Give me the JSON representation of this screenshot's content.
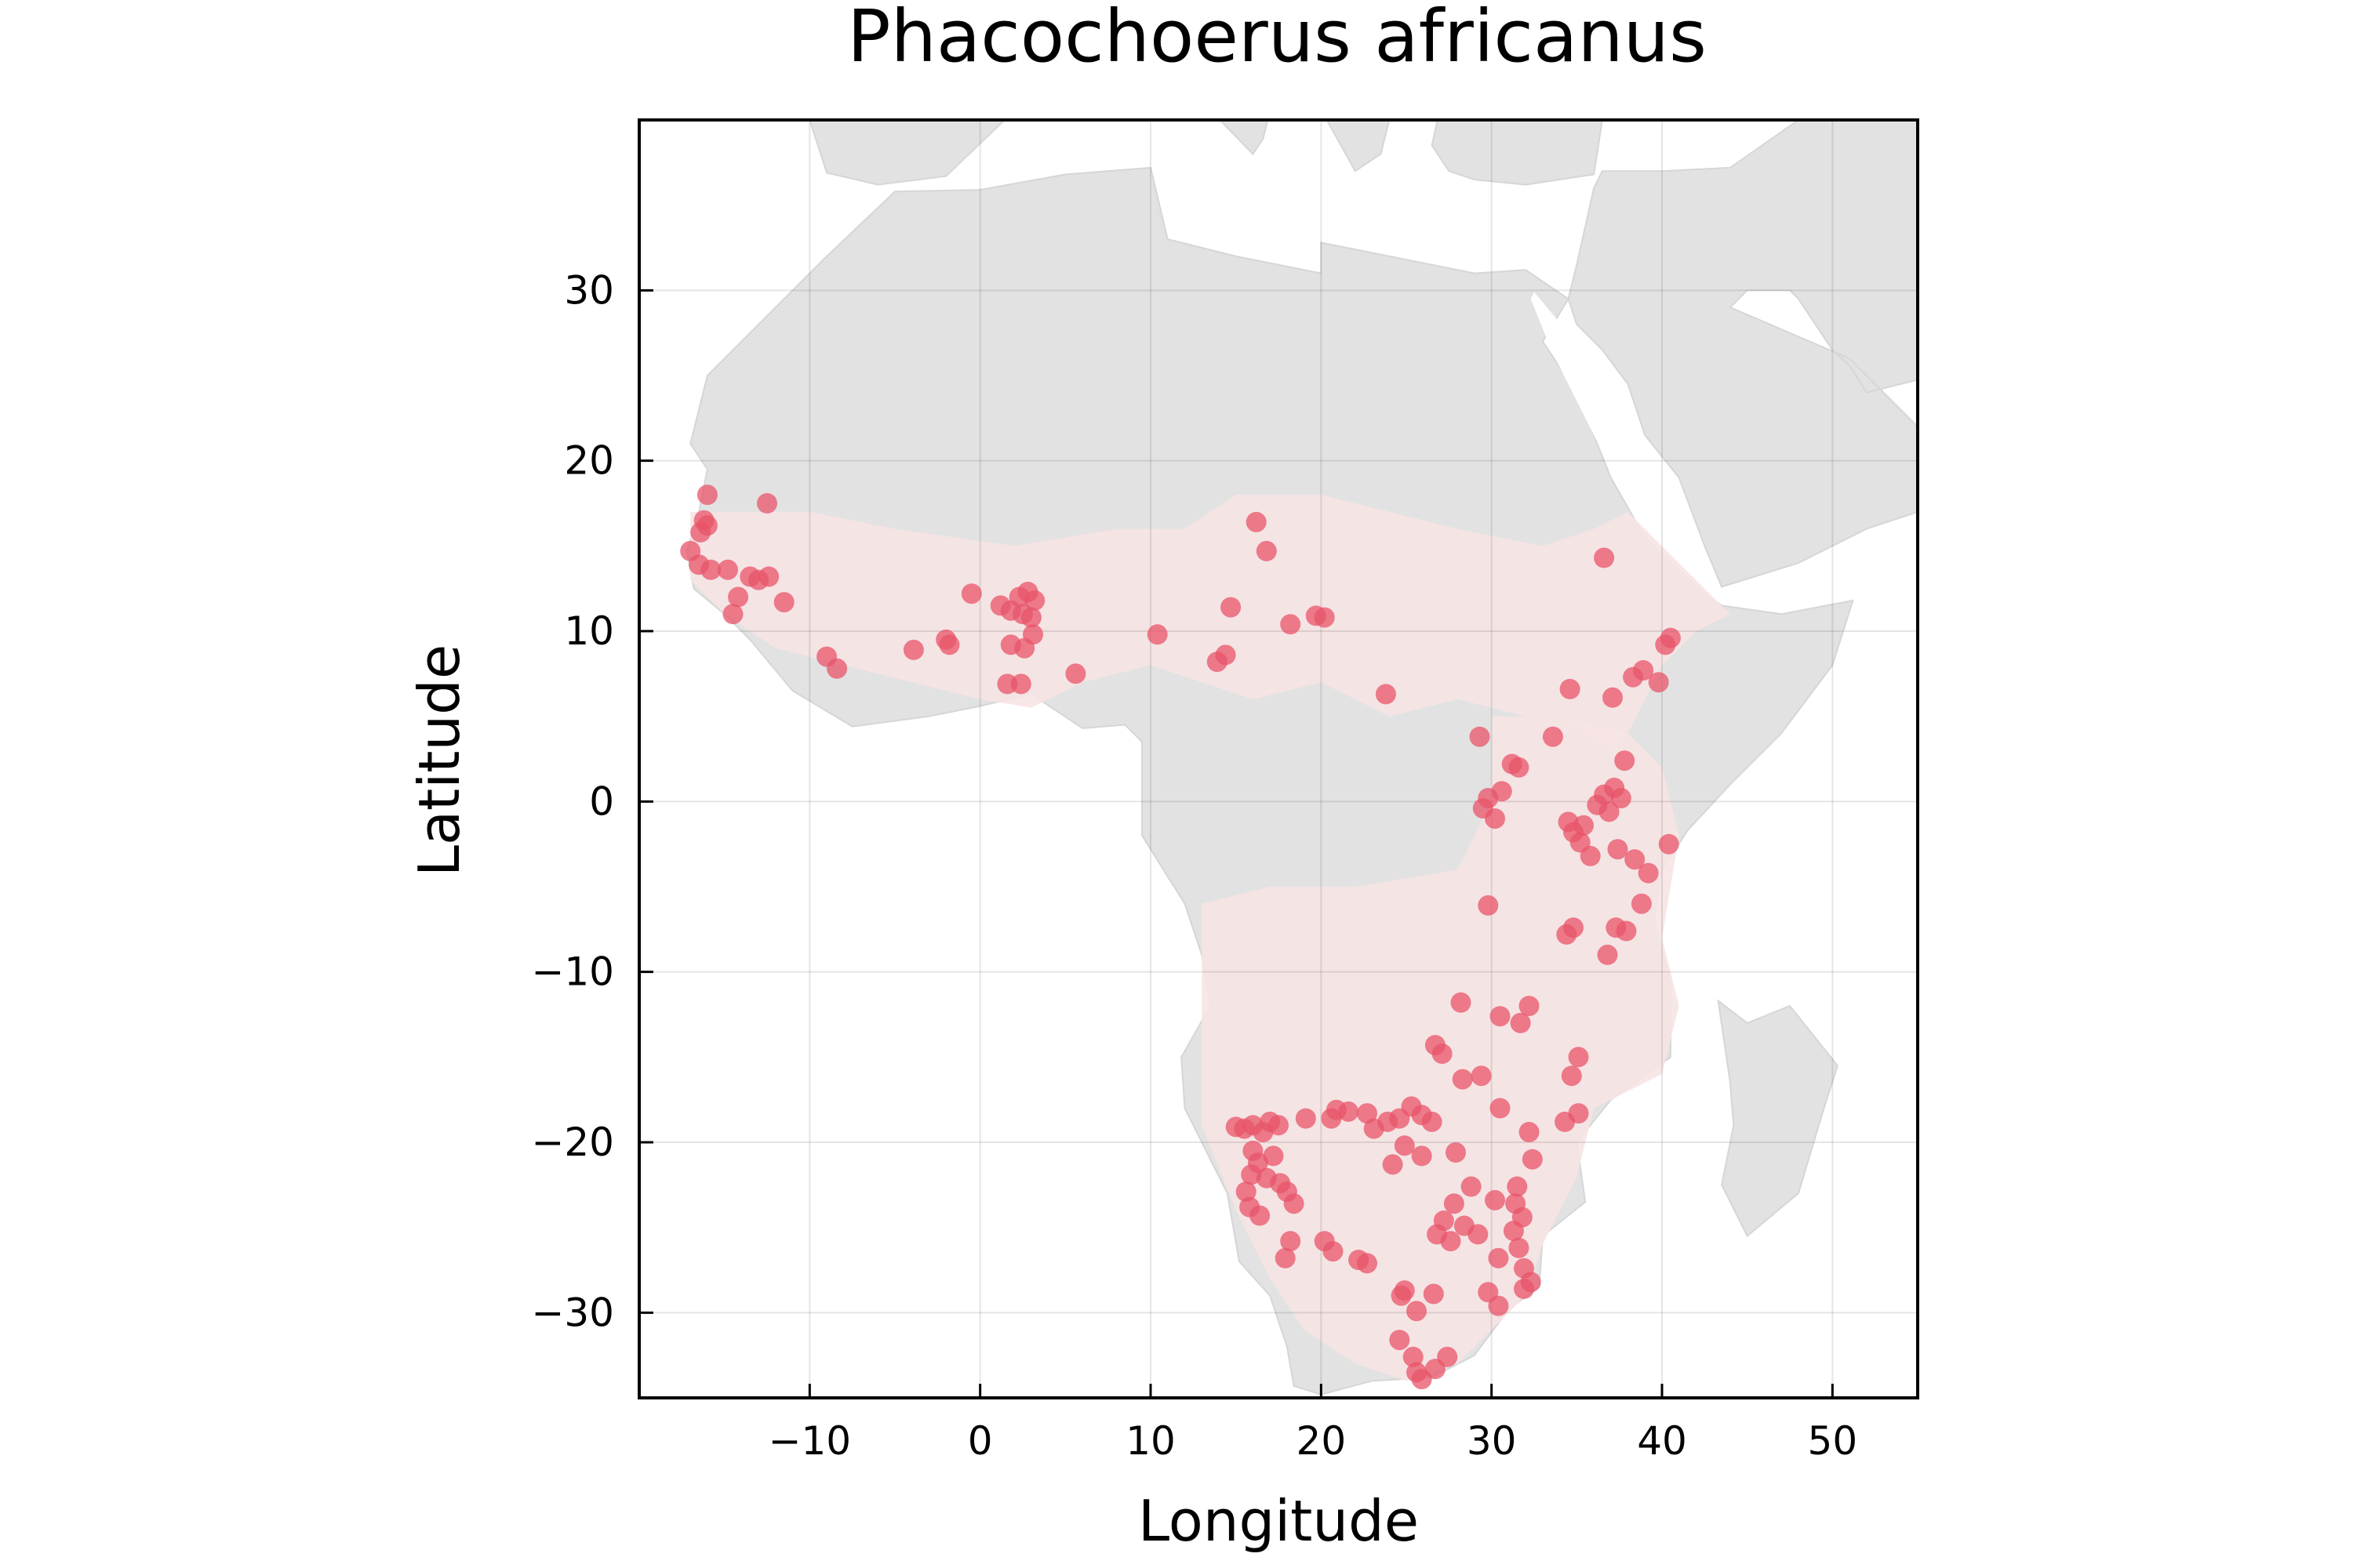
{
  "chart_data": {
    "type": "scatter",
    "title": "Phacochoerus africanus",
    "xlabel": "Longitude",
    "ylabel": "Latitude",
    "xlim": [
      -20,
      55
    ],
    "ylim": [
      -35,
      40
    ],
    "xticks": [
      -10,
      0,
      10,
      20,
      30,
      40,
      50
    ],
    "yticks": [
      -30,
      -20,
      -10,
      0,
      10,
      20,
      30
    ],
    "xtick_labels": [
      "−10",
      "0",
      "10",
      "20",
      "30",
      "40",
      "50"
    ],
    "ytick_labels": [
      "−30",
      "−20",
      "−10",
      "0",
      "10",
      "20",
      "30"
    ],
    "grid": true,
    "legend": "none",
    "colors": {
      "land": "#e2e2e2",
      "range": "#f7e4e4",
      "points": "#e8546a"
    },
    "points": [
      {
        "lon": -16.2,
        "lat": 16.5
      },
      {
        "lon": -16.0,
        "lat": 16.2
      },
      {
        "lon": -16.4,
        "lat": 15.8
      },
      {
        "lon": -17.0,
        "lat": 14.7
      },
      {
        "lon": -16.5,
        "lat": 13.9
      },
      {
        "lon": -15.8,
        "lat": 13.6
      },
      {
        "lon": -14.8,
        "lat": 13.6
      },
      {
        "lon": -13.5,
        "lat": 13.2
      },
      {
        "lon": -13.0,
        "lat": 13.0
      },
      {
        "lon": -12.4,
        "lat": 13.2
      },
      {
        "lon": -12.5,
        "lat": 17.5
      },
      {
        "lon": -16.0,
        "lat": 18.0
      },
      {
        "lon": -14.5,
        "lat": 11.0
      },
      {
        "lon": -14.2,
        "lat": 12.0
      },
      {
        "lon": -11.5,
        "lat": 11.7
      },
      {
        "lon": -9.0,
        "lat": 8.5
      },
      {
        "lon": -8.4,
        "lat": 7.8
      },
      {
        "lon": -3.9,
        "lat": 8.9
      },
      {
        "lon": -2.0,
        "lat": 9.5
      },
      {
        "lon": -1.8,
        "lat": 9.2
      },
      {
        "lon": -0.5,
        "lat": 12.2
      },
      {
        "lon": 1.2,
        "lat": 11.5
      },
      {
        "lon": 1.8,
        "lat": 11.2
      },
      {
        "lon": 2.3,
        "lat": 12.0
      },
      {
        "lon": 2.8,
        "lat": 12.3
      },
      {
        "lon": 3.2,
        "lat": 11.8
      },
      {
        "lon": 2.5,
        "lat": 11.0
      },
      {
        "lon": 3.0,
        "lat": 10.8
      },
      {
        "lon": 3.1,
        "lat": 9.8
      },
      {
        "lon": 2.6,
        "lat": 9.0
      },
      {
        "lon": 1.8,
        "lat": 9.2
      },
      {
        "lon": 1.6,
        "lat": 6.9
      },
      {
        "lon": 2.4,
        "lat": 6.9
      },
      {
        "lon": 5.6,
        "lat": 7.5
      },
      {
        "lon": 10.4,
        "lat": 9.8
      },
      {
        "lon": 13.9,
        "lat": 8.2
      },
      {
        "lon": 14.4,
        "lat": 8.6
      },
      {
        "lon": 14.7,
        "lat": 11.4
      },
      {
        "lon": 16.2,
        "lat": 16.4
      },
      {
        "lon": 16.8,
        "lat": 14.7
      },
      {
        "lon": 18.2,
        "lat": 10.4
      },
      {
        "lon": 19.7,
        "lat": 10.9
      },
      {
        "lon": 20.2,
        "lat": 10.8
      },
      {
        "lon": 23.8,
        "lat": 6.3
      },
      {
        "lon": 29.3,
        "lat": 3.8
      },
      {
        "lon": 29.8,
        "lat": 0.2
      },
      {
        "lon": 29.5,
        "lat": -0.4
      },
      {
        "lon": 30.2,
        "lat": -1.0
      },
      {
        "lon": 30.6,
        "lat": 0.6
      },
      {
        "lon": 31.2,
        "lat": 2.2
      },
      {
        "lon": 31.6,
        "lat": 2.0
      },
      {
        "lon": 33.6,
        "lat": 3.8
      },
      {
        "lon": 34.5,
        "lat": -1.2
      },
      {
        "lon": 34.8,
        "lat": -1.8
      },
      {
        "lon": 35.2,
        "lat": -2.4
      },
      {
        "lon": 35.8,
        "lat": -3.2
      },
      {
        "lon": 35.4,
        "lat": -1.4
      },
      {
        "lon": 36.2,
        "lat": -0.2
      },
      {
        "lon": 36.6,
        "lat": 0.4
      },
      {
        "lon": 37.2,
        "lat": 0.8
      },
      {
        "lon": 37.6,
        "lat": 0.2
      },
      {
        "lon": 36.9,
        "lat": -0.6
      },
      {
        "lon": 37.4,
        "lat": -2.8
      },
      {
        "lon": 38.4,
        "lat": -3.4
      },
      {
        "lon": 39.2,
        "lat": -4.2
      },
      {
        "lon": 38.8,
        "lat": -6.0
      },
      {
        "lon": 37.3,
        "lat": -7.4
      },
      {
        "lon": 37.9,
        "lat": -7.6
      },
      {
        "lon": 36.8,
        "lat": -9.0
      },
      {
        "lon": 34.4,
        "lat": -7.8
      },
      {
        "lon": 34.8,
        "lat": -7.4
      },
      {
        "lon": 29.8,
        "lat": -6.1
      },
      {
        "lon": 37.1,
        "lat": 6.1
      },
      {
        "lon": 38.3,
        "lat": 7.3
      },
      {
        "lon": 38.9,
        "lat": 7.7
      },
      {
        "lon": 39.8,
        "lat": 7.0
      },
      {
        "lon": 40.2,
        "lat": 9.2
      },
      {
        "lon": 40.5,
        "lat": 9.6
      },
      {
        "lon": 36.6,
        "lat": 14.3
      },
      {
        "lon": 34.6,
        "lat": 6.6
      },
      {
        "lon": 37.8,
        "lat": 2.4
      },
      {
        "lon": 40.4,
        "lat": -2.5
      },
      {
        "lon": 28.2,
        "lat": -11.8
      },
      {
        "lon": 31.7,
        "lat": -13.0
      },
      {
        "lon": 32.2,
        "lat": -12.0
      },
      {
        "lon": 30.5,
        "lat": -12.6
      },
      {
        "lon": 27.1,
        "lat": -14.8
      },
      {
        "lon": 26.7,
        "lat": -14.3
      },
      {
        "lon": 28.3,
        "lat": -16.3
      },
      {
        "lon": 29.4,
        "lat": -16.1
      },
      {
        "lon": 35.1,
        "lat": -15.0
      },
      {
        "lon": 34.7,
        "lat": -16.1
      },
      {
        "lon": 34.3,
        "lat": -18.8
      },
      {
        "lon": 35.1,
        "lat": -18.3
      },
      {
        "lon": 30.5,
        "lat": -18.0
      },
      {
        "lon": 32.2,
        "lat": -19.4
      },
      {
        "lon": 32.4,
        "lat": -21.0
      },
      {
        "lon": 31.5,
        "lat": -22.6
      },
      {
        "lon": 31.4,
        "lat": -23.6
      },
      {
        "lon": 31.8,
        "lat": -24.4
      },
      {
        "lon": 31.3,
        "lat": -25.2
      },
      {
        "lon": 31.6,
        "lat": -26.2
      },
      {
        "lon": 31.9,
        "lat": -27.4
      },
      {
        "lon": 32.3,
        "lat": -28.2
      },
      {
        "lon": 31.9,
        "lat": -28.6
      },
      {
        "lon": 30.2,
        "lat": -23.4
      },
      {
        "lon": 30.4,
        "lat": -26.8
      },
      {
        "lon": 29.8,
        "lat": -28.8
      },
      {
        "lon": 30.4,
        "lat": -29.6
      },
      {
        "lon": 27.8,
        "lat": -23.6
      },
      {
        "lon": 27.2,
        "lat": -24.6
      },
      {
        "lon": 26.8,
        "lat": -25.4
      },
      {
        "lon": 27.6,
        "lat": -25.8
      },
      {
        "lon": 28.4,
        "lat": -24.9
      },
      {
        "lon": 29.2,
        "lat": -25.4
      },
      {
        "lon": 28.8,
        "lat": -22.6
      },
      {
        "lon": 27.9,
        "lat": -20.6
      },
      {
        "lon": 25.9,
        "lat": -18.4
      },
      {
        "lon": 25.3,
        "lat": -17.9
      },
      {
        "lon": 24.6,
        "lat": -18.6
      },
      {
        "lon": 23.9,
        "lat": -18.8
      },
      {
        "lon": 23.1,
        "lat": -19.2
      },
      {
        "lon": 22.7,
        "lat": -18.3
      },
      {
        "lon": 21.6,
        "lat": -18.2
      },
      {
        "lon": 20.6,
        "lat": -18.6
      },
      {
        "lon": 20.9,
        "lat": -18.1
      },
      {
        "lon": 26.5,
        "lat": -18.8
      },
      {
        "lon": 25.9,
        "lat": -20.8
      },
      {
        "lon": 24.9,
        "lat": -20.2
      },
      {
        "lon": 24.2,
        "lat": -21.3
      },
      {
        "lon": 22.2,
        "lat": -26.9
      },
      {
        "lon": 24.7,
        "lat": -29.0
      },
      {
        "lon": 24.9,
        "lat": -28.7
      },
      {
        "lon": 25.6,
        "lat": -29.9
      },
      {
        "lon": 26.6,
        "lat": -28.9
      },
      {
        "lon": 24.6,
        "lat": -31.6
      },
      {
        "lon": 25.4,
        "lat": -32.6
      },
      {
        "lon": 25.6,
        "lat": -33.5
      },
      {
        "lon": 25.9,
        "lat": -33.9
      },
      {
        "lon": 26.7,
        "lat": -33.3
      },
      {
        "lon": 27.4,
        "lat": -32.6
      },
      {
        "lon": 15.0,
        "lat": -19.1
      },
      {
        "lon": 15.5,
        "lat": -19.2
      },
      {
        "lon": 16.0,
        "lat": -19.0
      },
      {
        "lon": 16.6,
        "lat": -19.4
      },
      {
        "lon": 17.0,
        "lat": -18.8
      },
      {
        "lon": 17.5,
        "lat": -19.0
      },
      {
        "lon": 16.0,
        "lat": -20.5
      },
      {
        "lon": 16.3,
        "lat": -21.2
      },
      {
        "lon": 15.9,
        "lat": -21.9
      },
      {
        "lon": 16.8,
        "lat": -22.1
      },
      {
        "lon": 17.2,
        "lat": -20.8
      },
      {
        "lon": 17.6,
        "lat": -22.4
      },
      {
        "lon": 18.0,
        "lat": -22.9
      },
      {
        "lon": 18.4,
        "lat": -23.6
      },
      {
        "lon": 15.6,
        "lat": -22.9
      },
      {
        "lon": 15.8,
        "lat": -23.8
      },
      {
        "lon": 16.4,
        "lat": -24.3
      },
      {
        "lon": 18.2,
        "lat": -25.8
      },
      {
        "lon": 17.9,
        "lat": -26.8
      },
      {
        "lon": 19.1,
        "lat": -18.6
      },
      {
        "lon": 20.2,
        "lat": -25.8
      },
      {
        "lon": 20.7,
        "lat": -26.4
      },
      {
        "lon": 22.7,
        "lat": -27.1
      }
    ],
    "range_polygons": [
      {
        "name": "sahel",
        "coords": [
          [
            -17,
            17
          ],
          [
            -10,
            17
          ],
          [
            -5,
            16
          ],
          [
            2,
            15
          ],
          [
            8,
            16
          ],
          [
            12,
            16
          ],
          [
            15,
            18
          ],
          [
            20,
            18
          ],
          [
            24,
            17
          ],
          [
            28,
            16
          ],
          [
            33,
            15
          ],
          [
            36,
            16
          ],
          [
            38,
            17
          ],
          [
            41,
            14
          ],
          [
            44,
            11
          ],
          [
            42,
            10
          ],
          [
            40,
            8
          ],
          [
            38,
            4
          ],
          [
            37,
            3
          ],
          [
            34,
            5
          ],
          [
            32,
            5
          ],
          [
            28,
            6
          ],
          [
            24,
            5
          ],
          [
            20,
            7
          ],
          [
            16,
            6
          ],
          [
            13,
            7
          ],
          [
            10,
            8
          ],
          [
            6,
            7
          ],
          [
            3,
            5.5
          ],
          [
            0,
            6
          ],
          [
            -4,
            7
          ],
          [
            -8,
            8
          ],
          [
            -12,
            9
          ],
          [
            -15,
            11
          ],
          [
            -17,
            13
          ]
        ]
      },
      {
        "name": "east",
        "coords": [
          [
            30,
            5
          ],
          [
            34,
            5
          ],
          [
            38,
            4
          ],
          [
            40,
            2
          ],
          [
            41,
            -2
          ],
          [
            40,
            -8
          ],
          [
            41,
            -12
          ],
          [
            40,
            -16
          ],
          [
            36,
            -18
          ],
          [
            35,
            -22
          ],
          [
            33,
            -26
          ],
          [
            32,
            -29
          ],
          [
            30,
            -31
          ],
          [
            28,
            -33
          ],
          [
            25,
            -34
          ],
          [
            22,
            -33
          ],
          [
            19,
            -31
          ],
          [
            17,
            -28
          ],
          [
            15,
            -24
          ],
          [
            13,
            -19
          ],
          [
            13,
            -13
          ],
          [
            13,
            -6
          ],
          [
            17,
            -5
          ],
          [
            22,
            -5
          ],
          [
            28,
            -4
          ],
          [
            30,
            0
          ]
        ]
      }
    ]
  }
}
